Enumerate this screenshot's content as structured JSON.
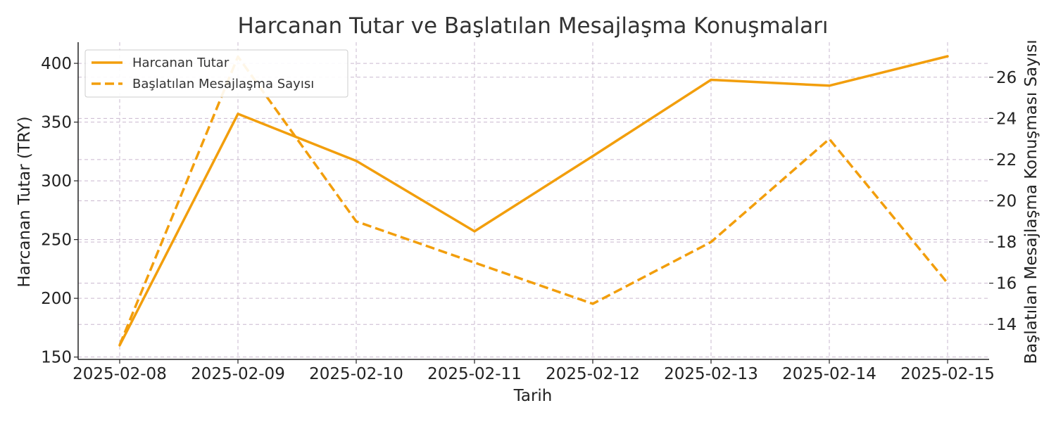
{
  "chart_data": {
    "type": "line",
    "title": "Harcanan Tutar ve Başlatılan Mesajlaşma Konuşmaları",
    "xlabel": "Tarih",
    "ylabel_left": "Harcanan Tutar (TRY)",
    "ylabel_right": "Başlatılan Mesajlaşma Konuşması Sayısı",
    "categories": [
      "2025-02-08",
      "2025-02-09",
      "2025-02-10",
      "2025-02-11",
      "2025-02-12",
      "2025-02-13",
      "2025-02-14",
      "2025-02-15"
    ],
    "series": [
      {
        "name": "Harcanan Tutar",
        "axis": "left",
        "style": "solid",
        "color": "#f29e0c",
        "values": [
          160,
          357,
          317,
          257,
          321,
          386,
          381,
          406
        ]
      },
      {
        "name": "Başlatılan Mesajlaşma Sayısı",
        "axis": "right",
        "style": "dashed",
        "color": "#f29e0c",
        "values": [
          13,
          27,
          19,
          17,
          15,
          18,
          23,
          16
        ]
      }
    ],
    "ylim_left": [
      148,
      418
    ],
    "yticks_left": [
      150,
      200,
      250,
      300,
      350,
      400
    ],
    "ylim_right": [
      12.3,
      27.7
    ],
    "yticks_right": [
      14,
      16,
      18,
      20,
      22,
      24,
      26
    ],
    "grid": true,
    "legend_position": "upper left"
  }
}
